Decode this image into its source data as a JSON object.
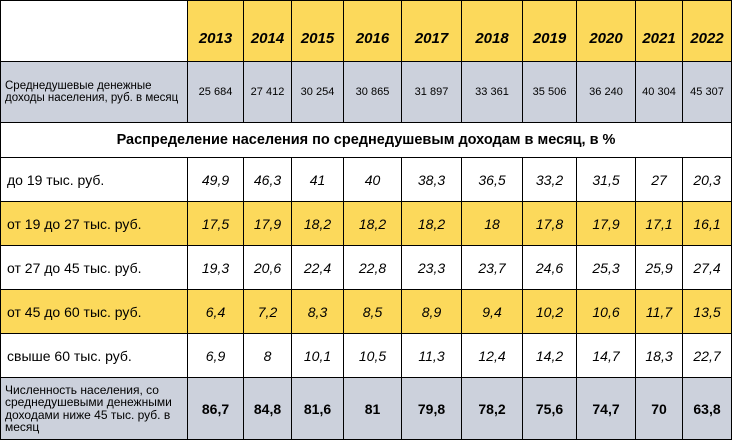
{
  "years": [
    "2013",
    "2014",
    "2015",
    "2016",
    "2017",
    "2018",
    "2019",
    "2020",
    "2021",
    "2022"
  ],
  "income": {
    "label": "Среднедушевые денежные доходы населения, руб. в месяц",
    "values": [
      "25 684",
      "27 412",
      "30 254",
      "30 865",
      "31 897",
      "33 361",
      "35 506",
      "36 240",
      "40 304",
      "45 307"
    ]
  },
  "section_title": "Распределение населения по среднедушевым доходам в месяц, в %",
  "distribution": [
    {
      "label": "до 19 тыс. руб.",
      "values": [
        "49,9",
        "46,3",
        "41",
        "40",
        "38,3",
        "36,5",
        "33,2",
        "31,5",
        "27",
        "20,3"
      ]
    },
    {
      "label": "от 19 до 27 тыс. руб.",
      "values": [
        "17,5",
        "17,9",
        "18,2",
        "18,2",
        "18,2",
        "18",
        "17,8",
        "17,9",
        "17,1",
        "16,1"
      ]
    },
    {
      "label": "от 27 до 45 тыс. руб.",
      "values": [
        "19,3",
        "20,6",
        "22,4",
        "22,8",
        "23,3",
        "23,7",
        "24,6",
        "25,3",
        "25,9",
        "27,4"
      ]
    },
    {
      "label": "от 45 до 60 тыс. руб.",
      "values": [
        "6,4",
        "7,2",
        "8,3",
        "8,5",
        "8,9",
        "9,4",
        "10,2",
        "10,6",
        "11,7",
        "13,5"
      ]
    },
    {
      "label": "свыше 60 тыс. руб.",
      "values": [
        "6,9",
        "8",
        "10,1",
        "10,5",
        "11,3",
        "12,4",
        "14,2",
        "14,7",
        "18,3",
        "22,7"
      ]
    }
  ],
  "population": {
    "label": "Численность населения, со среднедушевыми денежными доходами ниже 45 тыс. руб. в месяц",
    "values": [
      "86,7",
      "84,8",
      "81,6",
      "81",
      "79,8",
      "78,2",
      "75,6",
      "74,7",
      "70",
      "63,8"
    ]
  }
}
